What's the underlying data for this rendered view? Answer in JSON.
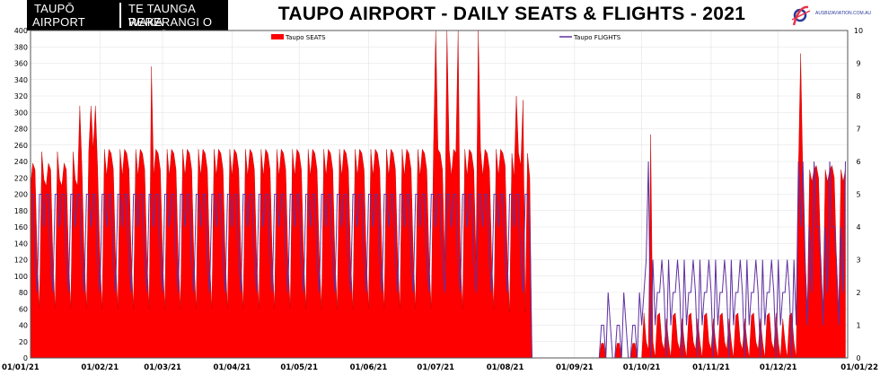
{
  "logo": {
    "line1_left": "TAUPŌ",
    "line2_left": "AIRPORT",
    "line1_right": "TE TAUNGA WAKA",
    "line2_right": "RERERANGI O TAUPŌ"
  },
  "brand": {
    "text": "AUSBIZAVIATION.COM.AU",
    "accent": "#e8334a",
    "primary": "#2a3a9a"
  },
  "chart_data": {
    "type": "area",
    "title": "TAUPO AIRPORT - DAILY SEATS & FLIGHTS - 2021",
    "x_ticks": [
      "01/01/21",
      "01/02/21",
      "01/03/21",
      "01/04/21",
      "01/05/21",
      "01/06/21",
      "01/07/21",
      "01/08/21",
      "01/09/21",
      "01/10/21",
      "01/11/21",
      "01/12/21",
      "01/01/22"
    ],
    "x_tick_days": [
      0,
      31,
      59,
      90,
      120,
      151,
      181,
      212,
      243,
      273,
      304,
      334,
      365
    ],
    "y_left_ticks": [
      "0",
      "20",
      "40",
      "60",
      "80",
      "100",
      "120",
      "140",
      "160",
      "180",
      "200",
      "220",
      "240",
      "260",
      "280",
      "300",
      "320",
      "340",
      "360",
      "380",
      "400"
    ],
    "y_right_ticks": [
      "0",
      "1",
      "2",
      "3",
      "4",
      "5",
      "6",
      "7",
      "8",
      "9",
      "10"
    ],
    "ylim_left": [
      0,
      400
    ],
    "ylim_right": [
      0,
      10
    ],
    "grid": true,
    "legend_placement": "top",
    "series": [
      {
        "name": "Taupo SEATS",
        "axis": "left",
        "color": "#ff0000",
        "segments": [
          {
            "start": 0,
            "pattern": [
              210,
              238,
              230,
              120,
              60,
              252,
              218
            ],
            "count": 28
          },
          {
            "start": 28,
            "pattern": [
              255,
              250,
              230,
              120,
              60,
              255,
              222
            ],
            "count": 182
          },
          {
            "start": 210,
            "pattern": [
              255,
              250,
              235,
              120,
              55,
              250,
              220
            ],
            "count": 14
          },
          {
            "start": 224,
            "pattern": [
              0
            ],
            "count": 29
          },
          {
            "start": 253,
            "pattern": [
              0,
              0,
              18,
              18,
              0,
              0,
              0
            ],
            "count": 21
          },
          {
            "start": 274,
            "pattern": [
              55,
              20,
              10,
              48,
              20,
              0,
              52
            ],
            "count": 59
          },
          {
            "start": 333,
            "pattern": [
              55,
              20,
              0,
              48,
              20,
              0,
              52
            ],
            "count": 10
          },
          {
            "start": 343,
            "pattern": [
              230,
              235,
              220,
              120,
              60,
              230,
              215
            ],
            "count": 22
          }
        ],
        "points": [
          [
            22,
            308
          ],
          [
            27,
            308
          ],
          [
            29,
            308
          ],
          [
            54,
            356
          ],
          [
            181,
            400
          ],
          [
            186,
            400
          ],
          [
            191,
            400
          ],
          [
            200,
            400
          ],
          [
            217,
            320
          ],
          [
            220,
            315
          ],
          [
            277,
            273
          ],
          [
            344,
            372
          ]
        ]
      },
      {
        "name": "Taupo FLIGHTS",
        "axis": "right",
        "color": "#6030a0",
        "segments": [
          {
            "start": 0,
            "pattern": [
              5,
              5,
              3,
              2,
              5,
              5,
              4
            ],
            "count": 224
          },
          {
            "start": 224,
            "pattern": [
              0
            ],
            "count": 29
          },
          {
            "start": 253,
            "pattern": [
              0,
              0,
              1,
              1,
              0,
              2,
              1
            ],
            "count": 21
          },
          {
            "start": 274,
            "pattern": [
              2,
              3,
              2,
              0,
              3,
              1,
              2
            ],
            "count": 69
          },
          {
            "start": 343,
            "pattern": [
              6,
              4,
              4,
              3,
              1,
              4,
              2
            ],
            "count": 22
          }
        ],
        "points": [
          [
            276,
            6
          ],
          [
            345,
            6
          ]
        ]
      }
    ]
  }
}
